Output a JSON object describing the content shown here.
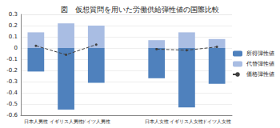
{
  "chart_data": {
    "type": "bar",
    "title": "図　仮想質問を用いた労働供給弾性値の国際比較",
    "categories": [
      "日本人男性",
      "イギリス人男性",
      "ドイツ人男性",
      null,
      "日本人女性",
      "イギリス人女性",
      "ドイツ人女性"
    ],
    "series": [
      {
        "name": "所得弾性値",
        "type": "bar",
        "color": "#4f81bd",
        "values": [
          -0.21,
          -0.55,
          -0.31,
          null,
          -0.27,
          -0.53,
          -0.32
        ]
      },
      {
        "name": "代替弾性値",
        "type": "bar",
        "color": "#a9bde3",
        "values": [
          0.14,
          0.22,
          0.2,
          null,
          0.07,
          0.14,
          0.08
        ]
      },
      {
        "name": "価格弾性値",
        "type": "line",
        "color": "#404040",
        "line_style": "dashed",
        "marker": "circle",
        "values": [
          0.02,
          -0.06,
          0.03,
          null,
          -0.01,
          -0.02,
          0.01
        ]
      }
    ],
    "stacked": true,
    "ylim": [
      -0.6,
      0.3
    ],
    "yticks": [
      -0.6,
      -0.5,
      -0.4,
      -0.3,
      -0.2,
      -0.1,
      0,
      0.1,
      0.2,
      0.3
    ],
    "grid": true,
    "legend": "right"
  }
}
